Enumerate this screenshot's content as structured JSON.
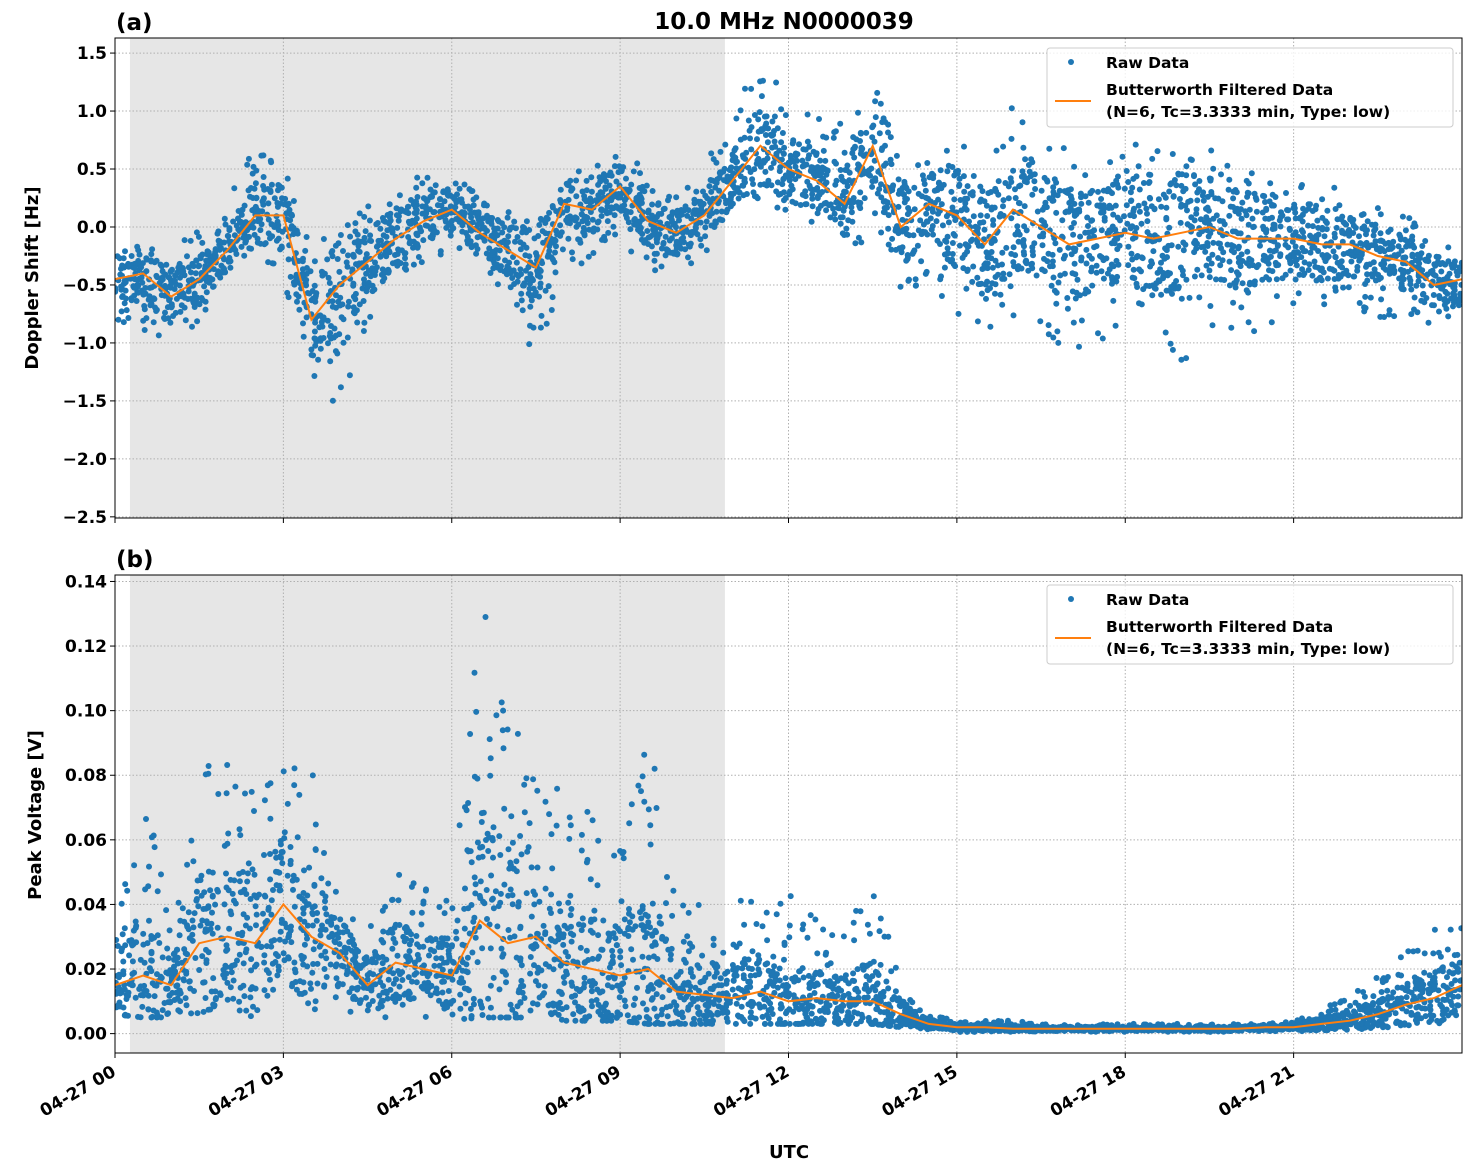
{
  "chart_data": [
    {
      "type": "scatter+line",
      "panel_label": "(a)",
      "title": "10.0 MHz N0000039",
      "xlabel": "",
      "ylabel": "Doppler Shift [Hz]",
      "ylim": [
        -2.51,
        1.63
      ],
      "yticks": [
        1.5,
        1.0,
        0.5,
        0.0,
        -0.5,
        -1.0,
        -1.5,
        -2.0,
        -2.5
      ],
      "ytick_labels": [
        "1.5",
        "1.0",
        "0.5",
        "0.0",
        "−0.5",
        "−1.0",
        "−1.5",
        "−2.0",
        "−2.5"
      ],
      "grid": true,
      "legend_position": "top-right",
      "legend": [
        "Raw Data",
        "Butterworth Filtered Data",
        "(N=6, Tc=3.3333 min, Type: low)"
      ],
      "shaded_region": [
        "04-27 00:16",
        "04-27 10:52"
      ],
      "times": [
        "00:00",
        "00:30",
        "01:00",
        "01:30",
        "02:00",
        "02:30",
        "03:00",
        "03:30",
        "04:00",
        "04:30",
        "05:00",
        "05:30",
        "06:00",
        "06:30",
        "07:00",
        "07:30",
        "08:00",
        "08:30",
        "09:00",
        "09:30",
        "10:00",
        "10:30",
        "11:00",
        "11:30",
        "12:00",
        "12:30",
        "13:00",
        "13:30",
        "14:00",
        "14:30",
        "15:00",
        "15:30",
        "16:00",
        "16:30",
        "17:00",
        "17:30",
        "18:00",
        "18:30",
        "19:00",
        "19:30",
        "20:00",
        "20:30",
        "21:00",
        "21:30",
        "22:00",
        "22:30",
        "23:00",
        "23:30",
        "24:00"
      ],
      "series": [
        {
          "name": "Butterworth Filtered Data",
          "color": "#ff7f0e",
          "values": [
            -0.45,
            -0.4,
            -0.6,
            -0.45,
            -0.2,
            0.1,
            0.1,
            -0.8,
            -0.5,
            -0.3,
            -0.1,
            0.05,
            0.15,
            -0.05,
            -0.2,
            -0.35,
            0.2,
            0.15,
            0.35,
            0.05,
            -0.05,
            0.1,
            0.4,
            0.7,
            0.5,
            0.4,
            0.2,
            0.7,
            0.0,
            0.2,
            0.1,
            -0.15,
            0.15,
            0.0,
            -0.15,
            -0.1,
            -0.05,
            -0.1,
            -0.05,
            0.0,
            -0.1,
            -0.1,
            -0.1,
            -0.15,
            -0.15,
            -0.25,
            -0.3,
            -0.5,
            -0.45
          ]
        },
        {
          "name": "Raw Data",
          "color": "#1f77b4",
          "min": [
            -0.9,
            -0.9,
            -1.1,
            -0.8,
            -0.5,
            -0.2,
            -0.5,
            -1.25,
            -1.6,
            -0.9,
            -0.5,
            -0.3,
            -0.2,
            -0.4,
            -0.6,
            -1.2,
            -0.4,
            -0.3,
            -0.1,
            -0.4,
            -0.4,
            -0.3,
            0.2,
            0.2,
            0.1,
            0.0,
            -0.2,
            -0.1,
            -0.7,
            -0.4,
            -0.9,
            -1.0,
            -0.8,
            -1.0,
            -1.1,
            -1.0,
            -0.9,
            -1.0,
            -1.2,
            -0.9,
            -0.9,
            -0.9,
            -0.8,
            -0.8,
            -0.7,
            -0.8,
            -0.8,
            -0.9,
            -0.9
          ],
          "max": [
            -0.1,
            0.0,
            -0.2,
            0.0,
            0.2,
            0.75,
            0.6,
            -0.1,
            0.0,
            0.2,
            0.4,
            0.45,
            0.45,
            0.3,
            0.2,
            0.1,
            0.35,
            0.6,
            0.65,
            0.5,
            0.3,
            0.5,
            1.1,
            1.4,
            1.2,
            1.0,
            0.9,
            1.3,
            0.6,
            0.6,
            0.8,
            0.7,
            1.1,
            0.9,
            0.7,
            0.6,
            0.7,
            0.8,
            0.7,
            0.7,
            0.6,
            0.5,
            0.4,
            0.4,
            0.3,
            0.2,
            0.1,
            0.0,
            -0.1
          ]
        }
      ]
    },
    {
      "type": "scatter+line",
      "panel_label": "(b)",
      "xlabel": "UTC",
      "ylabel": "Peak Voltage [V]",
      "ylim": [
        -0.006,
        0.142
      ],
      "yticks": [
        0.14,
        0.12,
        0.1,
        0.08,
        0.06,
        0.04,
        0.02,
        0.0
      ],
      "ytick_labels": [
        "0.14",
        "0.12",
        "0.10",
        "0.08",
        "0.06",
        "0.04",
        "0.02",
        "0.00"
      ],
      "xticks": [
        "04-27 00",
        "04-27 03",
        "04-27 06",
        "04-27 09",
        "04-27 12",
        "04-27 15",
        "04-27 18",
        "04-27 21"
      ],
      "grid": true,
      "legend_position": "top-right",
      "legend": [
        "Raw Data",
        "Butterworth Filtered Data",
        "(N=6, Tc=3.3333 min, Type: low)"
      ],
      "shaded_region": [
        "04-27 00:16",
        "04-27 10:52"
      ],
      "times": [
        "00:00",
        "00:30",
        "01:00",
        "01:30",
        "02:00",
        "02:30",
        "03:00",
        "03:30",
        "04:00",
        "04:30",
        "05:00",
        "05:30",
        "06:00",
        "06:30",
        "07:00",
        "07:30",
        "08:00",
        "08:30",
        "09:00",
        "09:30",
        "10:00",
        "10:30",
        "11:00",
        "11:30",
        "12:00",
        "12:30",
        "13:00",
        "13:30",
        "14:00",
        "14:30",
        "15:00",
        "15:30",
        "16:00",
        "16:30",
        "17:00",
        "17:30",
        "18:00",
        "18:30",
        "19:00",
        "19:30",
        "20:00",
        "20:30",
        "21:00",
        "21:30",
        "22:00",
        "22:30",
        "23:00",
        "23:30",
        "24:00"
      ],
      "series": [
        {
          "name": "Butterworth Filtered Data",
          "color": "#ff7f0e",
          "values": [
            0.015,
            0.018,
            0.015,
            0.028,
            0.03,
            0.028,
            0.04,
            0.03,
            0.025,
            0.015,
            0.022,
            0.02,
            0.018,
            0.035,
            0.028,
            0.03,
            0.022,
            0.02,
            0.018,
            0.02,
            0.013,
            0.012,
            0.011,
            0.013,
            0.01,
            0.011,
            0.01,
            0.01,
            0.006,
            0.003,
            0.002,
            0.002,
            0.0015,
            0.0015,
            0.0015,
            0.0015,
            0.0015,
            0.0015,
            0.0015,
            0.0015,
            0.0015,
            0.002,
            0.002,
            0.003,
            0.004,
            0.006,
            0.009,
            0.011,
            0.015
          ]
        },
        {
          "name": "Raw Data",
          "color": "#1f77b4",
          "min": [
            0.006,
            0.005,
            0.005,
            0.005,
            0.006,
            0.005,
            0.006,
            0.006,
            0.006,
            0.004,
            0.005,
            0.005,
            0.004,
            0.005,
            0.005,
            0.005,
            0.004,
            0.004,
            0.004,
            0.003,
            0.003,
            0.003,
            0.003,
            0.003,
            0.003,
            0.003,
            0.003,
            0.003,
            0.002,
            0.001,
            0.0005,
            0.0005,
            0.0005,
            0.0005,
            0.0005,
            0.0005,
            0.0005,
            0.0005,
            0.0005,
            0.0005,
            0.0005,
            0.0005,
            0.0005,
            0.001,
            0.001,
            0.002,
            0.002,
            0.003,
            0.004
          ],
          "max": [
            0.033,
            0.08,
            0.035,
            0.085,
            0.084,
            0.094,
            0.087,
            0.087,
            0.045,
            0.035,
            0.05,
            0.045,
            0.045,
            0.135,
            0.113,
            0.081,
            0.075,
            0.073,
            0.06,
            0.095,
            0.045,
            0.04,
            0.045,
            0.045,
            0.048,
            0.035,
            0.03,
            0.051,
            0.015,
            0.006,
            0.004,
            0.004,
            0.004,
            0.003,
            0.003,
            0.003,
            0.003,
            0.003,
            0.003,
            0.003,
            0.003,
            0.003,
            0.004,
            0.008,
            0.012,
            0.018,
            0.025,
            0.035,
            0.038
          ]
        }
      ]
    }
  ]
}
